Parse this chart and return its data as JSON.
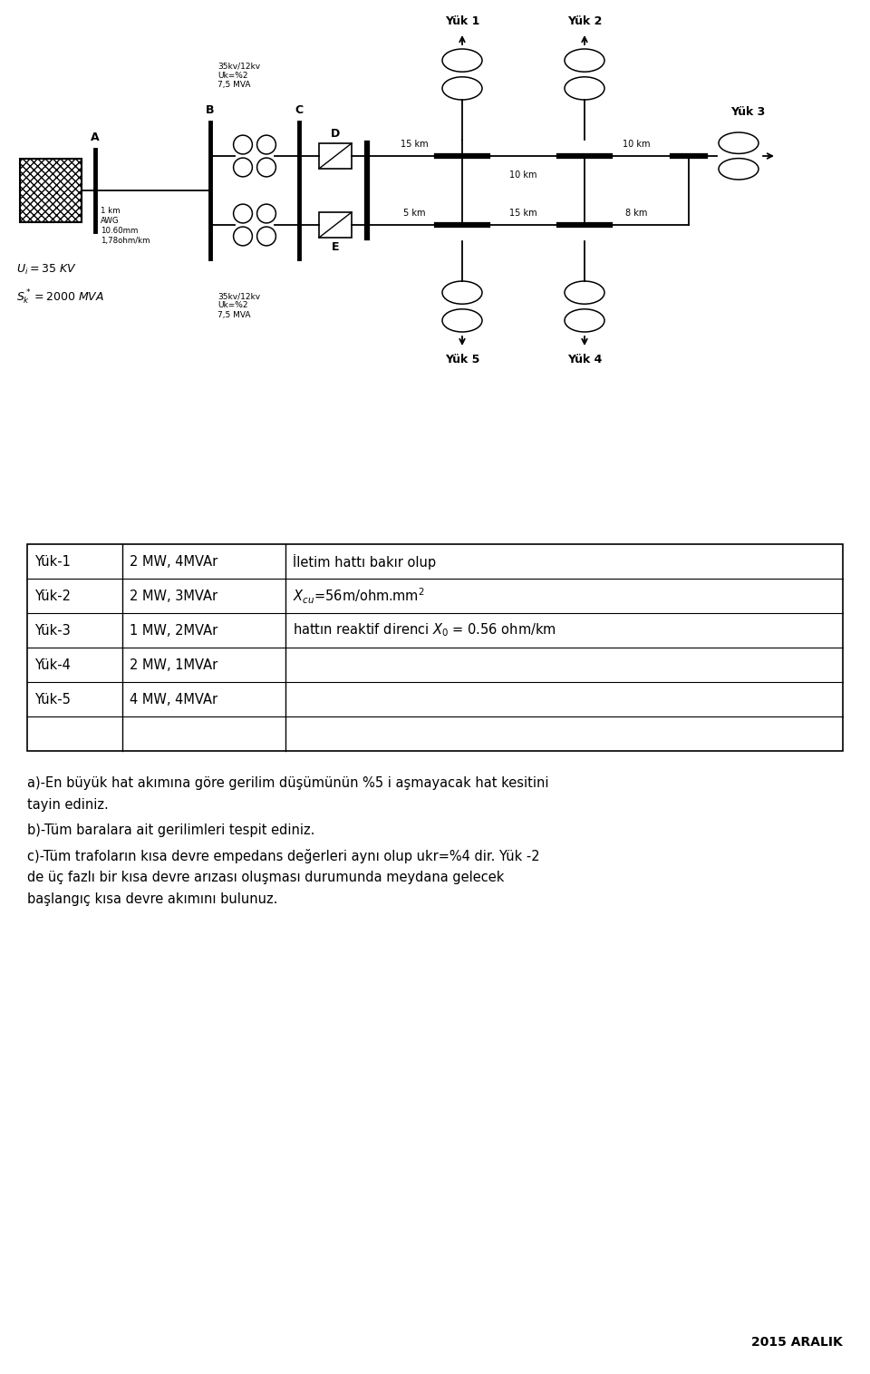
{
  "bg_color": "#ffffff",
  "fig_width": 9.6,
  "fig_height": 15.15,
  "table_rows": [
    [
      "Yük-1",
      "2 MW, 4MVAr"
    ],
    [
      "Yük-2",
      "2 MW, 3MVAr"
    ],
    [
      "Yük-3",
      "1 MW, 2MVAr"
    ],
    [
      "Yük-4",
      "2 MW, 1MVAr"
    ],
    [
      "Yük-5",
      "4 MW, 4MVAr"
    ]
  ],
  "right_col_row1": "İletim hattı bakır olup",
  "right_col_row2": "$X_{cu}$=56m/ohm.mm$^2$",
  "right_col_row3": "hattın reaktif direnci $X_0$ = 0.56 ohm/km",
  "para_a": "a)-En büyük hat akımına göre gerilim düşümünün %5 i aşmayacak hat kesitini",
  "para_a2": "tayin ediniz.",
  "para_b": "b)-Tüm baralara ait gerilimleri tespit ediniz.",
  "para_c": "c)-Tüm trafoların kısa devre empedans değerleri aynı olup ukr=%4 dir. Yük -2",
  "para_c2": "de üç fazlı bir kısa devre arızası oluşması durumunda meydana gelecek",
  "para_c3": "başlangıç kısa devre akımını bulunuz.",
  "footer": "2015 ARALIK",
  "trf_label": "35kv/12kv\nUk=%2\n7,5 MVA",
  "cable_label": "1 km\nAWG\n10.60mm\n1,78ohm/km",
  "source_u": "$U_i = 35\\ KV$",
  "source_s": "$S_k^* = 2000\\ MVA$",
  "bus_a_label": "A",
  "bus_b_label": "B",
  "bus_c_label": "C",
  "label_d": "D",
  "label_e": "E",
  "dist_15km_top": "15 km",
  "dist_10km_mid": "10 km",
  "dist_10km_right": "10 km",
  "dist_5km": "5 km",
  "dist_15km_bot": "15 km",
  "dist_8km": "8 km",
  "yuk1": "Yük 1",
  "yuk2": "Yük 2",
  "yuk3": "Yük 3",
  "yuk4": "Yük 4",
  "yuk5": "Yük 5"
}
